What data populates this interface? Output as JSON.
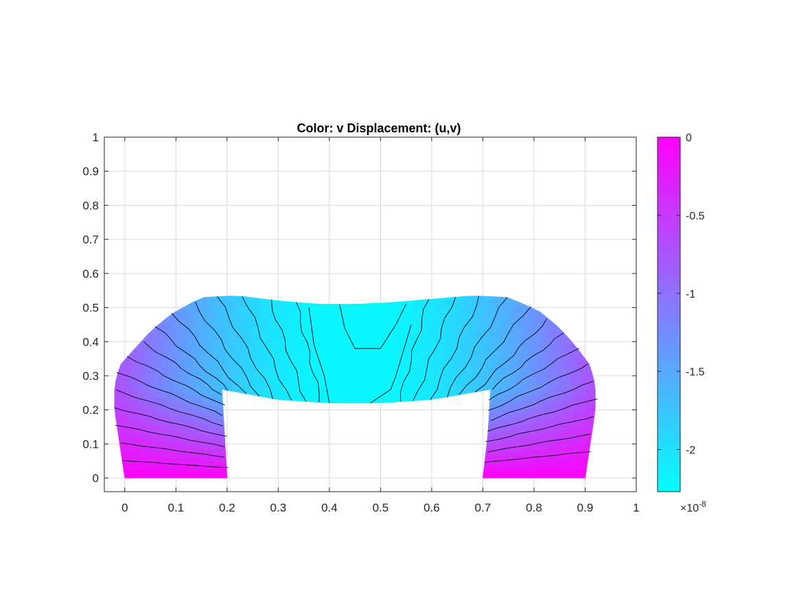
{
  "chart_data": {
    "type": "heatmap",
    "title": "Color: v  Displacement: (u,v)",
    "xlabel": "",
    "ylabel": "",
    "xlim": [
      -0.04,
      1.0
    ],
    "ylim": [
      -0.04,
      1.0
    ],
    "xticks": [
      "0",
      "0.1",
      "0.2",
      "0.3",
      "0.4",
      "0.5",
      "0.6",
      "0.7",
      "0.8",
      "0.9",
      "1"
    ],
    "yticks": [
      "0",
      "0.1",
      "0.2",
      "0.3",
      "0.4",
      "0.5",
      "0.6",
      "0.7",
      "0.8",
      "0.9",
      "1"
    ],
    "grid": true,
    "colormap": "cool",
    "color_low": "#00ffff",
    "color_high": "#ff00ff",
    "colorbar": {
      "range": [
        -2.27,
        0
      ],
      "ticks": [
        "0",
        "-0.5",
        "-1",
        "-1.5",
        "-2"
      ],
      "tick_values": [
        0,
        -0.5,
        -1,
        -1.5,
        -2
      ],
      "exponent_base": "×10",
      "exponent": "-8"
    },
    "outline_left_profile": [
      [
        0.0,
        0.0
      ],
      [
        -0.01,
        0.1
      ],
      [
        -0.02,
        0.2
      ],
      [
        -0.02,
        0.27
      ],
      [
        -0.01,
        0.33
      ],
      [
        0.02,
        0.38
      ],
      [
        0.05,
        0.43
      ],
      [
        0.09,
        0.48
      ],
      [
        0.15,
        0.53
      ],
      [
        0.22,
        0.535
      ]
    ],
    "outline_top_profile": [
      [
        0.22,
        0.535
      ],
      [
        0.3,
        0.52
      ],
      [
        0.38,
        0.51
      ],
      [
        0.45,
        0.51
      ],
      [
        0.52,
        0.515
      ],
      [
        0.6,
        0.525
      ],
      [
        0.68,
        0.535
      ]
    ],
    "outline_right_profile": [
      [
        0.68,
        0.535
      ],
      [
        0.75,
        0.53
      ],
      [
        0.81,
        0.49
      ],
      [
        0.85,
        0.44
      ],
      [
        0.88,
        0.39
      ],
      [
        0.91,
        0.33
      ],
      [
        0.92,
        0.27
      ],
      [
        0.92,
        0.2
      ],
      [
        0.91,
        0.1
      ],
      [
        0.9,
        0.0
      ]
    ],
    "notch_profile": [
      [
        0.7,
        0.0
      ],
      [
        0.71,
        0.13
      ],
      [
        0.715,
        0.26
      ],
      [
        0.6,
        0.23
      ],
      [
        0.5,
        0.22
      ],
      [
        0.4,
        0.22
      ],
      [
        0.3,
        0.23
      ],
      [
        0.19,
        0.26
      ],
      [
        0.195,
        0.13
      ],
      [
        0.2,
        0.0
      ]
    ]
  }
}
